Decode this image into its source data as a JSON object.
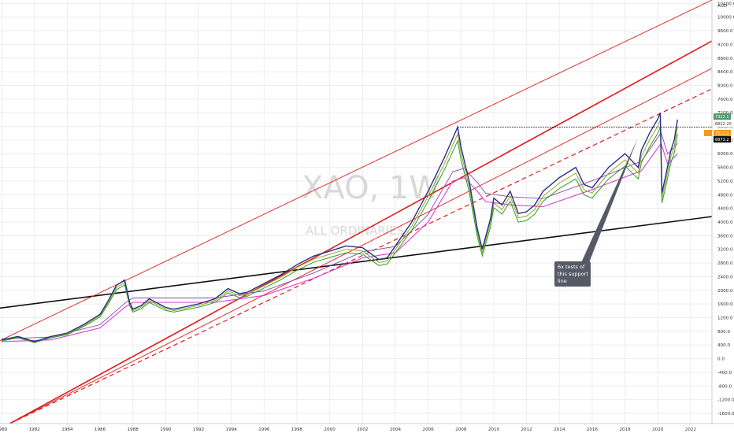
{
  "symbol": "XAO, 1W",
  "name": "ALL ORDINARIES",
  "currency": "AUD",
  "annotation": [
    "6x tests of",
    "this support",
    "line"
  ],
  "price_tags": {
    "high": "7322.1",
    "current": "6822.20",
    "marker": "7322.1",
    "close": "6873.2"
  },
  "colors": {
    "channel": "#e31a1c",
    "support": "#111111",
    "price": "#2a2f8a",
    "ma_green": "#2ca02c",
    "ma_olive": "#9aa81e",
    "ma_magenta": "#d63fd6",
    "ma_purple": "#8e44ad",
    "grid": "#ededed",
    "tag_green": "#4f9a6c",
    "tag_orange": "#f39c12",
    "tag_black": "#111111"
  },
  "chart_data": {
    "type": "line",
    "title": "XAO, 1W",
    "subtitle": "ALL ORDINARIES",
    "x_ticks": [
      "1980",
      "1982",
      "1984",
      "1986",
      "1988",
      "1990",
      "1992",
      "1994",
      "1996",
      "1998",
      "2000",
      "2002",
      "2004",
      "2006",
      "2008",
      "2010",
      "2012",
      "2014",
      "2016",
      "2018",
      "2020",
      "2022"
    ],
    "y_ticks": [
      "AUD",
      "10400.0",
      "10000.0",
      "9600.0",
      "9200.0",
      "8800.0",
      "8400.0",
      "8000.0",
      "7600.0",
      "7200.0",
      "6800.0",
      "6400.0",
      "6000.0",
      "5600.0",
      "5200.0",
      "4800.0",
      "4400.0",
      "4000.0",
      "3600.0",
      "3200.0",
      "2800.0",
      "2400.0",
      "2000.0",
      "1600.0",
      "1200.0",
      "800.0",
      "400.0",
      "0.0",
      "-400.0",
      "-800.0",
      "-1200.0",
      "-1600.0"
    ],
    "xlim": [
      1979.9,
      2023.3
    ],
    "ylim": [
      -1900,
      10500
    ],
    "grid": true,
    "series": [
      {
        "kind": "price",
        "x": [
          1980.0,
          1981.0,
          1982.0,
          1983.0,
          1984.0,
          1985.0,
          1986.0,
          1986.5,
          1987.0,
          1987.5,
          1987.8,
          1988.0,
          1988.5,
          1989.0,
          1990.0,
          1990.5,
          1991.0,
          1992.0,
          1993.0,
          1993.8,
          1994.5,
          1995.0,
          1996.0,
          1997.0,
          1998.0,
          1999.0,
          2000.0,
          2001.0,
          2002.0,
          2003.0,
          2003.5,
          2004.0,
          2005.0,
          2006.0,
          2007.0,
          2007.8,
          2008.0,
          2008.5,
          2009.0,
          2009.3,
          2009.8,
          2010.0,
          2010.5,
          2011.0,
          2011.5,
          2012.0,
          2012.5,
          2013.0,
          2014.0,
          2015.0,
          2015.5,
          2016.0,
          2017.0,
          2018.0,
          2018.8,
          2019.0,
          2019.5,
          2020.0,
          2020.15,
          2020.25,
          2020.5,
          2020.8,
          2021.0,
          2021.2
        ],
        "y": [
          550,
          650,
          500,
          650,
          750,
          1000,
          1300,
          1700,
          2150,
          2300,
          1650,
          1450,
          1550,
          1750,
          1500,
          1450,
          1500,
          1600,
          1750,
          2050,
          1900,
          1950,
          2200,
          2450,
          2750,
          3000,
          3150,
          3300,
          3250,
          2900,
          2950,
          3300,
          4000,
          4900,
          5900,
          6780,
          6200,
          5200,
          3800,
          3200,
          4100,
          4700,
          4500,
          4900,
          4250,
          4300,
          4500,
          4900,
          5300,
          5600,
          5100,
          5000,
          5600,
          6000,
          5600,
          6100,
          6600,
          7020,
          7200,
          4850,
          5400,
          6100,
          6400,
          7000
        ]
      },
      {
        "kind": "ma",
        "x": [
          1980,
          1983,
          1986,
          1987.5,
          1988,
          1990,
          1993,
          1996,
          1999,
          2002,
          2004,
          2006,
          2007.5,
          2008.2,
          2009,
          2009.5,
          2011,
          2013,
          2016,
          2019,
          2020.2,
          2020.6,
          2021.2
        ],
        "y": [
          500,
          550,
          900,
          1500,
          1650,
          1650,
          1650,
          1850,
          2350,
          2950,
          3100,
          4000,
          5200,
          5300,
          4900,
          4600,
          4500,
          4450,
          4950,
          5500,
          6300,
          5700,
          6000
        ]
      }
    ]
  }
}
